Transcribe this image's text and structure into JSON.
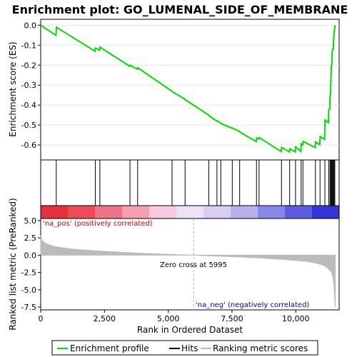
{
  "chart_data": {
    "type": "line",
    "title": "Enrichment plot: GO_LUMENAL_SIDE_OF_MEMBRANE",
    "xlabel": "Rank in Ordered Dataset",
    "es_ylabel": "Enrichment score (ES)",
    "metric_ylabel": "Ranked list metric (PreRanked)",
    "xlim": [
      0,
      11700
    ],
    "x_ticks": [
      0,
      2500,
      5000,
      7500,
      10000
    ],
    "x_tick_labels": [
      "0",
      "2,500",
      "5,000",
      "7,500",
      "10,000"
    ],
    "es_ylim": [
      -0.675,
      0.03
    ],
    "es_ticks": [
      0.0,
      -0.1,
      -0.2,
      -0.3,
      -0.4,
      -0.5,
      -0.6
    ],
    "es_tick_labels": [
      "0.0",
      "-0.1",
      "-0.2",
      "-0.3",
      "-0.4",
      "-0.5",
      "-0.6"
    ],
    "metric_ylim": [
      -7.9,
      5.3
    ],
    "metric_ticks": [
      5.0,
      2.5,
      0.0,
      -2.5,
      -5.0,
      -7.5
    ],
    "metric_tick_labels": [
      "5.0",
      "2.5",
      "0.0",
      "-2.5",
      "-5.0",
      "-7.5"
    ],
    "hits": [
      610,
      2140,
      2320,
      3500,
      3800,
      5150,
      5660,
      6590,
      6910,
      7060,
      7510,
      7800,
      8460,
      8560,
      9440,
      9760,
      9990,
      10210,
      10280,
      10770,
      10950,
      11140,
      11290,
      11340,
      11370,
      11390,
      11420,
      11450,
      11480,
      11500,
      11530
    ],
    "es_curve": {
      "x": [
        0,
        600,
        615,
        2130,
        2145,
        2310,
        2325,
        3490,
        3505,
        3790,
        3805,
        5140,
        5155,
        5650,
        5665,
        6580,
        6595,
        6900,
        6915,
        7050,
        7065,
        7500,
        7515,
        7790,
        7805,
        8450,
        8465,
        8550,
        8565,
        9430,
        9445,
        9750,
        9765,
        9980,
        9995,
        10200,
        10215,
        10270,
        10285,
        10760,
        10775,
        10940,
        10955,
        11130,
        11145,
        11280,
        11295,
        11330,
        11345,
        11360,
        11375,
        11380,
        11395,
        11410,
        11425,
        11440,
        11455,
        11470,
        11485,
        11495,
        11505,
        11520,
        11535
      ],
      "y": [
        0.0,
        -0.05,
        -0.01,
        -0.13,
        -0.115,
        -0.125,
        -0.11,
        -0.205,
        -0.2,
        -0.22,
        -0.213,
        -0.33,
        -0.333,
        -0.37,
        -0.373,
        -0.45,
        -0.453,
        -0.48,
        -0.479,
        -0.49,
        -0.492,
        -0.516,
        -0.515,
        -0.532,
        -0.535,
        -0.583,
        -0.565,
        -0.57,
        -0.563,
        -0.633,
        -0.612,
        -0.635,
        -0.62,
        -0.635,
        -0.61,
        -0.632,
        -0.595,
        -0.6,
        -0.582,
        -0.613,
        -0.585,
        -0.598,
        -0.558,
        -0.572,
        -0.475,
        -0.488,
        -0.422,
        -0.42,
        -0.35,
        -0.345,
        -0.275,
        -0.27,
        -0.2,
        -0.205,
        -0.14,
        -0.12,
        -0.12,
        -0.12,
        -0.07,
        -0.06,
        -0.03,
        -0.02,
        0.0
      ]
    },
    "metric_curve": {
      "x": [
        0,
        50,
        150,
        300,
        500,
        800,
        1200,
        1700,
        2300,
        3000,
        3800,
        4600,
        5400,
        5995,
        6500,
        7200,
        8000,
        8800,
        9500,
        10000,
        10400,
        10800,
        11100,
        11300,
        11400,
        11460,
        11500,
        11530,
        11550
      ],
      "y": [
        2.8,
        2.2,
        1.8,
        1.55,
        1.3,
        1.1,
        0.9,
        0.75,
        0.6,
        0.45,
        0.3,
        0.18,
        0.08,
        0.0,
        -0.08,
        -0.18,
        -0.3,
        -0.45,
        -0.6,
        -0.75,
        -0.9,
        -1.15,
        -1.5,
        -2.0,
        -2.5,
        -3.2,
        -4.5,
        -6.5,
        -7.5
      ]
    },
    "zero_cross": 5995,
    "zero_cross_label": "Zero cross at 5995",
    "pos_label": "'na_pos' (positively correlated)",
    "neg_label": "'na_neg' (negatively correlated)",
    "legend": [
      "Enrichment profile",
      "Hits",
      "Ranking metric scores"
    ],
    "colors": {
      "es_line": "#00dd00",
      "hits": "#000000",
      "metric_fill": "#bbbbbb",
      "pos_label": "#cc0000",
      "neg_label": "#0000cc",
      "zero_line": "#aaaaaa",
      "heat_blocks": [
        "#e8303a",
        "#ee4a58",
        "#f07484",
        "#f4a0b0",
        "#f8c8e0",
        "#eee0f6",
        "#d8ccf2",
        "#b8b0ea",
        "#8888e8",
        "#5c5ce0",
        "#3434d6"
      ]
    }
  }
}
